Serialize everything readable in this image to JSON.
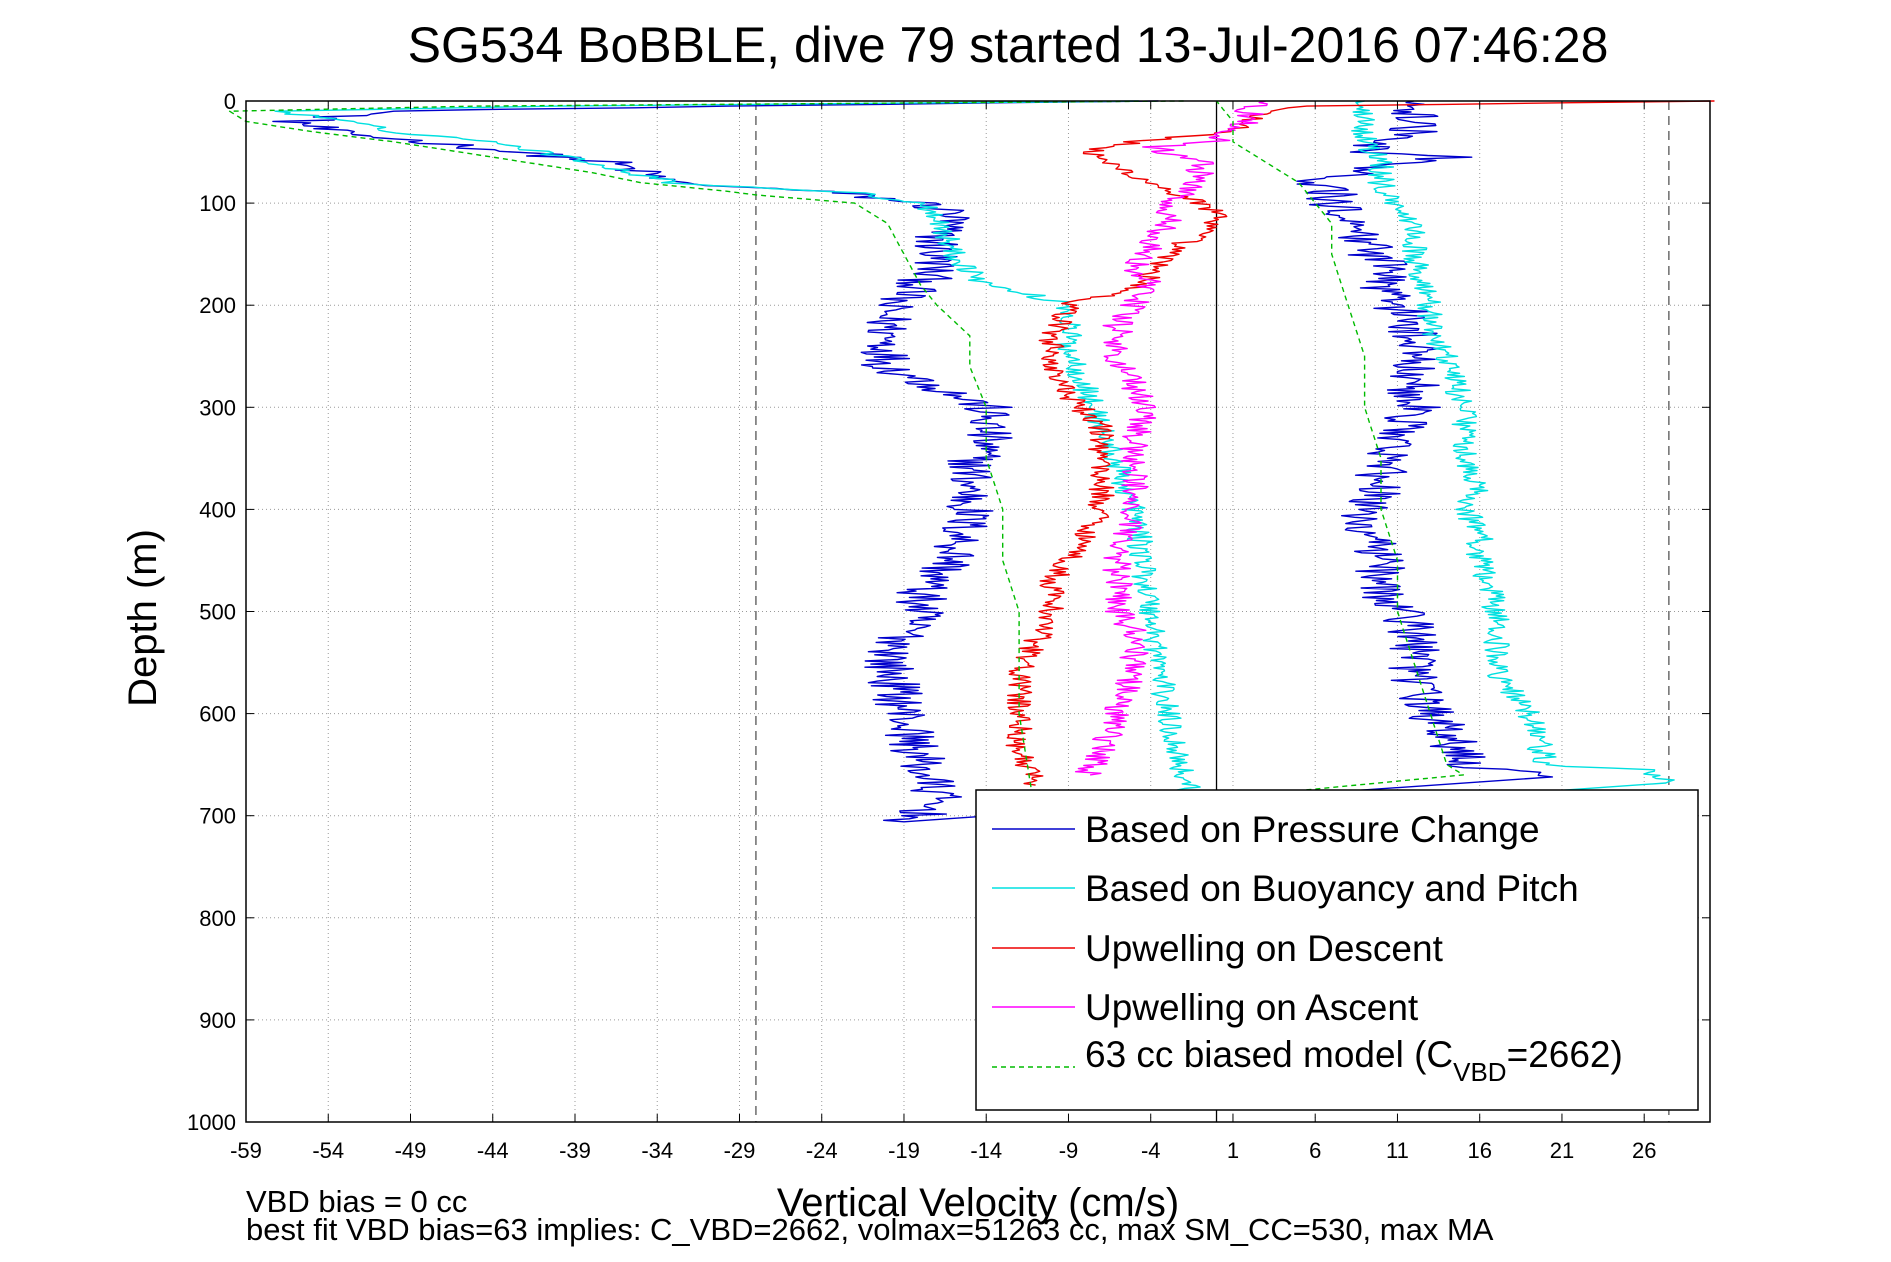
{
  "chart_data": {
    "type": "line",
    "title": "SG534 BoBBLE, dive 79 started 13-Jul-2016 07:46:28",
    "xlabel": "Vertical Velocity (cm/s)",
    "ylabel": "Depth (m)",
    "xlim": [
      -59,
      30
    ],
    "ylim": [
      1000,
      0
    ],
    "y_reversed": true,
    "grid": true,
    "x_ticks": [
      "-59",
      "-54",
      "-49",
      "-44",
      "-39",
      "-34",
      "-29",
      "-24",
      "-19",
      "-14",
      "-9",
      "-4",
      "1",
      "6",
      "11",
      "16",
      "21",
      "26"
    ],
    "y_ticks": [
      "0",
      "100",
      "200",
      "300",
      "400",
      "500",
      "600",
      "700",
      "800",
      "900",
      "1000"
    ],
    "reference_lines": [
      {
        "x": -28,
        "style": "dashed",
        "color": "#555555"
      },
      {
        "x": 0,
        "style": "solid",
        "color": "#000000"
      },
      {
        "x": 27.5,
        "style": "dashed",
        "color": "#555555"
      }
    ],
    "legend_position": "bottom-right",
    "series": [
      {
        "name": "Based on Pressure Change",
        "color": "#0000cc",
        "style": "solid",
        "noise": 1.6,
        "descent": [
          [
            0,
            -2
          ],
          [
            5,
            -30
          ],
          [
            10,
            -50
          ],
          [
            20,
            -56
          ],
          [
            30,
            -54
          ],
          [
            40,
            -48
          ],
          [
            60,
            -37
          ],
          [
            80,
            -33
          ],
          [
            90,
            -23
          ],
          [
            100,
            -18
          ],
          [
            110,
            -16
          ],
          [
            130,
            -17
          ],
          [
            160,
            -17
          ],
          [
            180,
            -18
          ],
          [
            200,
            -20
          ],
          [
            220,
            -20
          ],
          [
            240,
            -20
          ],
          [
            260,
            -20
          ],
          [
            280,
            -17
          ],
          [
            300,
            -14
          ],
          [
            330,
            -14
          ],
          [
            360,
            -15
          ],
          [
            400,
            -15
          ],
          [
            450,
            -16
          ],
          [
            480,
            -18
          ],
          [
            500,
            -18
          ],
          [
            550,
            -20
          ],
          [
            600,
            -19
          ],
          [
            650,
            -18
          ],
          [
            680,
            -17
          ],
          [
            700,
            -18
          ],
          [
            706,
            -19
          ]
        ],
        "ascent": [
          [
            662,
            20
          ],
          [
            650,
            15
          ],
          [
            620,
            14
          ],
          [
            600,
            13
          ],
          [
            560,
            12
          ],
          [
            520,
            12
          ],
          [
            500,
            11
          ],
          [
            480,
            10
          ],
          [
            450,
            10
          ],
          [
            420,
            9
          ],
          [
            400,
            9
          ],
          [
            380,
            10
          ],
          [
            350,
            10
          ],
          [
            330,
            11
          ],
          [
            300,
            12
          ],
          [
            280,
            12
          ],
          [
            250,
            12
          ],
          [
            220,
            12
          ],
          [
            200,
            11
          ],
          [
            180,
            10
          ],
          [
            160,
            10
          ],
          [
            140,
            9
          ],
          [
            120,
            9
          ],
          [
            100,
            7
          ],
          [
            90,
            7
          ],
          [
            80,
            6
          ],
          [
            70,
            9
          ],
          [
            60,
            11
          ],
          [
            55,
            14
          ],
          [
            50,
            9
          ],
          [
            45,
            9
          ],
          [
            30,
            12
          ],
          [
            15,
            12
          ],
          [
            8,
            12
          ],
          [
            0,
            12
          ]
        ]
      },
      {
        "name": "Based on Buoyancy and Pitch",
        "color": "#00e0e0",
        "style": "solid",
        "noise": 0.8,
        "descent": [
          [
            0,
            -5
          ],
          [
            5,
            -40
          ],
          [
            10,
            -57
          ],
          [
            20,
            -53
          ],
          [
            30,
            -50
          ],
          [
            40,
            -44
          ],
          [
            60,
            -38
          ],
          [
            80,
            -33
          ],
          [
            90,
            -22
          ],
          [
            100,
            -18
          ],
          [
            110,
            -17
          ],
          [
            150,
            -16
          ],
          [
            180,
            -14
          ],
          [
            195,
            -10
          ],
          [
            200,
            -9
          ],
          [
            240,
            -9
          ],
          [
            280,
            -8
          ],
          [
            320,
            -7
          ],
          [
            400,
            -5
          ],
          [
            500,
            -4
          ],
          [
            600,
            -3
          ],
          [
            660,
            -2
          ],
          [
            700,
            -1
          ]
        ],
        "ascent": [
          [
            668,
            28
          ],
          [
            662,
            27
          ],
          [
            655,
            26
          ],
          [
            650,
            20
          ],
          [
            600,
            19
          ],
          [
            560,
            17
          ],
          [
            520,
            17
          ],
          [
            500,
            17
          ],
          [
            450,
            16
          ],
          [
            420,
            16
          ],
          [
            400,
            15
          ],
          [
            380,
            16
          ],
          [
            350,
            15
          ],
          [
            300,
            15
          ],
          [
            250,
            14
          ],
          [
            230,
            13
          ],
          [
            200,
            13
          ],
          [
            150,
            12
          ],
          [
            120,
            12
          ],
          [
            100,
            11
          ],
          [
            80,
            10
          ],
          [
            60,
            10
          ],
          [
            40,
            9
          ],
          [
            20,
            9
          ],
          [
            0,
            9
          ]
        ]
      },
      {
        "name": "Upwelling on Descent",
        "color": "#ee0000",
        "style": "solid",
        "noise": 0.8,
        "descent": [
          [
            0,
            30
          ],
          [
            5,
            6
          ],
          [
            10,
            3
          ],
          [
            20,
            2
          ],
          [
            30,
            1
          ],
          [
            40,
            -5
          ],
          [
            50,
            -8
          ],
          [
            80,
            -4
          ],
          [
            100,
            -1
          ],
          [
            110,
            0
          ],
          [
            130,
            -1
          ],
          [
            150,
            -3
          ],
          [
            170,
            -4
          ],
          [
            185,
            -5
          ],
          [
            195,
            -8
          ],
          [
            200,
            -9
          ],
          [
            230,
            -10
          ],
          [
            260,
            -10
          ],
          [
            290,
            -9
          ],
          [
            320,
            -7
          ],
          [
            350,
            -7
          ],
          [
            400,
            -7
          ],
          [
            430,
            -8
          ],
          [
            470,
            -10
          ],
          [
            500,
            -10
          ],
          [
            530,
            -11
          ],
          [
            560,
            -12
          ],
          [
            600,
            -12
          ],
          [
            640,
            -12
          ],
          [
            670,
            -11
          ]
        ]
      },
      {
        "name": "Upwelling on Ascent",
        "color": "#ff00ff",
        "style": "solid",
        "noise": 0.9,
        "ascent": [
          [
            660,
            -8
          ],
          [
            640,
            -7
          ],
          [
            600,
            -6
          ],
          [
            560,
            -5
          ],
          [
            520,
            -5
          ],
          [
            500,
            -6
          ],
          [
            470,
            -6
          ],
          [
            440,
            -6
          ],
          [
            400,
            -5
          ],
          [
            360,
            -5
          ],
          [
            330,
            -5
          ],
          [
            300,
            -4
          ],
          [
            280,
            -5
          ],
          [
            250,
            -6
          ],
          [
            220,
            -6
          ],
          [
            200,
            -5
          ],
          [
            180,
            -4
          ],
          [
            160,
            -5
          ],
          [
            140,
            -4
          ],
          [
            120,
            -3
          ],
          [
            100,
            -3
          ],
          [
            90,
            -2
          ],
          [
            80,
            -1
          ],
          [
            60,
            -1
          ],
          [
            45,
            -4
          ],
          [
            40,
            0
          ],
          [
            30,
            1
          ],
          [
            20,
            2
          ],
          [
            10,
            2
          ],
          [
            0,
            3
          ]
        ]
      },
      {
        "name": "63 cc biased model (C",
        "name_sub": "VBD",
        "name_suffix": "=2662)",
        "color": "#00bb00",
        "style": "dashed",
        "noise": 0,
        "descent": [
          [
            0,
            -2
          ],
          [
            5,
            -45
          ],
          [
            10,
            -60
          ],
          [
            20,
            -59
          ],
          [
            30,
            -55
          ],
          [
            40,
            -50
          ],
          [
            60,
            -42
          ],
          [
            70,
            -38
          ],
          [
            80,
            -35
          ],
          [
            88,
            -30
          ],
          [
            92,
            -28
          ],
          [
            100,
            -22
          ],
          [
            120,
            -20
          ],
          [
            150,
            -19
          ],
          [
            180,
            -18
          ],
          [
            200,
            -17
          ],
          [
            230,
            -15
          ],
          [
            260,
            -15
          ],
          [
            300,
            -14
          ],
          [
            350,
            -14
          ],
          [
            400,
            -13
          ],
          [
            450,
            -13
          ],
          [
            500,
            -12
          ],
          [
            600,
            -12
          ],
          [
            700,
            -11
          ]
        ],
        "ascent": [
          [
            660,
            15
          ],
          [
            650,
            14
          ],
          [
            600,
            13
          ],
          [
            550,
            12
          ],
          [
            500,
            11
          ],
          [
            450,
            11
          ],
          [
            400,
            10
          ],
          [
            350,
            10
          ],
          [
            300,
            9
          ],
          [
            250,
            9
          ],
          [
            200,
            8
          ],
          [
            150,
            7
          ],
          [
            120,
            7
          ],
          [
            100,
            6
          ],
          [
            80,
            5
          ],
          [
            60,
            3
          ],
          [
            40,
            1
          ],
          [
            20,
            1
          ],
          [
            0,
            0
          ]
        ]
      }
    ],
    "annotations": [
      "VBD bias = 0 cc",
      "best fit VBD bias=63 implies: C_VBD=2662, volmax=51263 cc, max SM_CC=530, max MA"
    ]
  }
}
